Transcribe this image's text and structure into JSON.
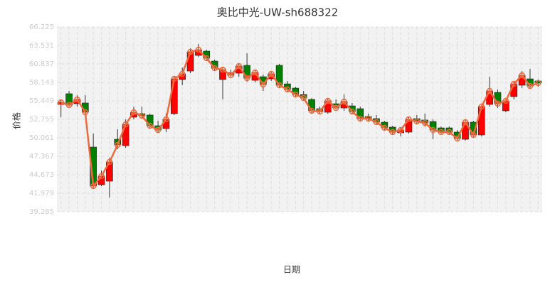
{
  "chart_data": {
    "type": "candlestick",
    "title": "奥比中光-UW-sh688322",
    "x_label": "日期",
    "y_label": "价格",
    "categories": [
      null,
      null,
      null,
      null,
      null,
      null,
      null,
      null,
      null,
      null,
      null,
      null,
      null,
      null,
      null,
      null,
      null,
      null,
      null,
      null,
      null,
      null,
      null,
      null,
      null,
      null,
      null,
      null,
      null,
      null,
      null,
      null,
      null,
      null,
      null,
      null,
      null,
      null,
      null,
      null,
      null,
      null,
      null,
      null,
      null,
      null,
      null,
      null,
      null,
      null,
      null,
      null,
      null,
      null,
      null,
      null,
      null,
      null,
      null,
      null
    ],
    "open": [
      54.93,
      56.49,
      55.03,
      55.14,
      48.71,
      43.22,
      43.74,
      49.85,
      48.92,
      53.07,
      53.58,
      53.38,
      51.82,
      51.41,
      53.58,
      58.56,
      59.8,
      62.08,
      62.7,
      61.25,
      58.56,
      59.59,
      59.49,
      60.63,
      58.45,
      58.97,
      58.66,
      60.63,
      57.93,
      57.31,
      56.38,
      55.66,
      54.31,
      53.79,
      55.03,
      54.41,
      54.72,
      54.31,
      53.17,
      52.86,
      52.34,
      51.62,
      50.79,
      50.89,
      52.86,
      52.65,
      52.44,
      51.51,
      51.51,
      50.89,
      49.85,
      52.34,
      50.48,
      54.93,
      56.69,
      54.0,
      56.07,
      57.73,
      58.66,
      58.35
    ],
    "close": [
      55.24,
      54.83,
      55.66,
      53.79,
      43.02,
      44.47,
      46.54,
      49.03,
      52.03,
      53.79,
      53.27,
      51.82,
      51.2,
      52.75,
      58.66,
      59.39,
      62.6,
      62.91,
      61.66,
      60.21,
      60.01,
      59.18,
      60.53,
      58.76,
      59.59,
      57.83,
      59.39,
      57.73,
      57.11,
      56.38,
      55.86,
      54.0,
      53.89,
      55.45,
      54.41,
      55.35,
      53.89,
      52.86,
      52.86,
      52.34,
      51.51,
      50.89,
      51.2,
      52.75,
      52.44,
      52.24,
      51.2,
      50.89,
      50.89,
      49.96,
      52.34,
      50.48,
      54.62,
      56.9,
      55.03,
      55.45,
      57.93,
      59.18,
      57.62,
      58.04
    ],
    "high": [
      55.66,
      56.9,
      56.28,
      56.28,
      50.68,
      45.3,
      47.16,
      51.3,
      52.75,
      54.62,
      54.62,
      53.58,
      52.55,
      53.58,
      58.97,
      60.32,
      63.11,
      63.74,
      62.91,
      61.46,
      60.32,
      60.01,
      60.84,
      62.39,
      60.01,
      59.28,
      59.8,
      60.84,
      58.35,
      57.52,
      56.9,
      55.86,
      54.62,
      55.86,
      55.66,
      56.38,
      55.14,
      54.62,
      53.58,
      53.38,
      52.55,
      51.82,
      51.51,
      53.07,
      53.38,
      53.58,
      52.75,
      51.72,
      51.72,
      51.2,
      52.75,
      52.55,
      54.83,
      58.97,
      57.11,
      55.66,
      58.35,
      59.8,
      60.11,
      58.56
    ],
    "low": [
      53.07,
      54.62,
      54.62,
      53.58,
      42.71,
      43.02,
      41.36,
      48.4,
      48.61,
      52.75,
      52.96,
      51.51,
      50.79,
      50.89,
      53.38,
      57.73,
      59.49,
      61.87,
      61.35,
      59.8,
      55.66,
      58.97,
      58.97,
      58.25,
      58.14,
      56.9,
      58.35,
      57.31,
      56.69,
      56.07,
      55.45,
      53.58,
      53.58,
      53.58,
      54.21,
      54.0,
      53.58,
      52.55,
      52.55,
      52.03,
      51.2,
      50.58,
      50.27,
      50.68,
      52.13,
      51.72,
      49.85,
      50.68,
      50.48,
      49.65,
      49.65,
      50.17,
      50.27,
      54.62,
      54.41,
      53.79,
      55.66,
      57.31,
      57.31,
      57.52
    ],
    "up_color": "#ff0000",
    "down_color": "#008000",
    "line_color": "#ee6a3c",
    "ylim": [
      39.285,
      66.225
    ],
    "yticks": [
      39.285,
      41.979,
      44.673,
      47.367,
      50.061,
      52.755,
      55.449,
      58.143,
      60.837,
      63.531,
      66.225
    ],
    "grid": true
  }
}
